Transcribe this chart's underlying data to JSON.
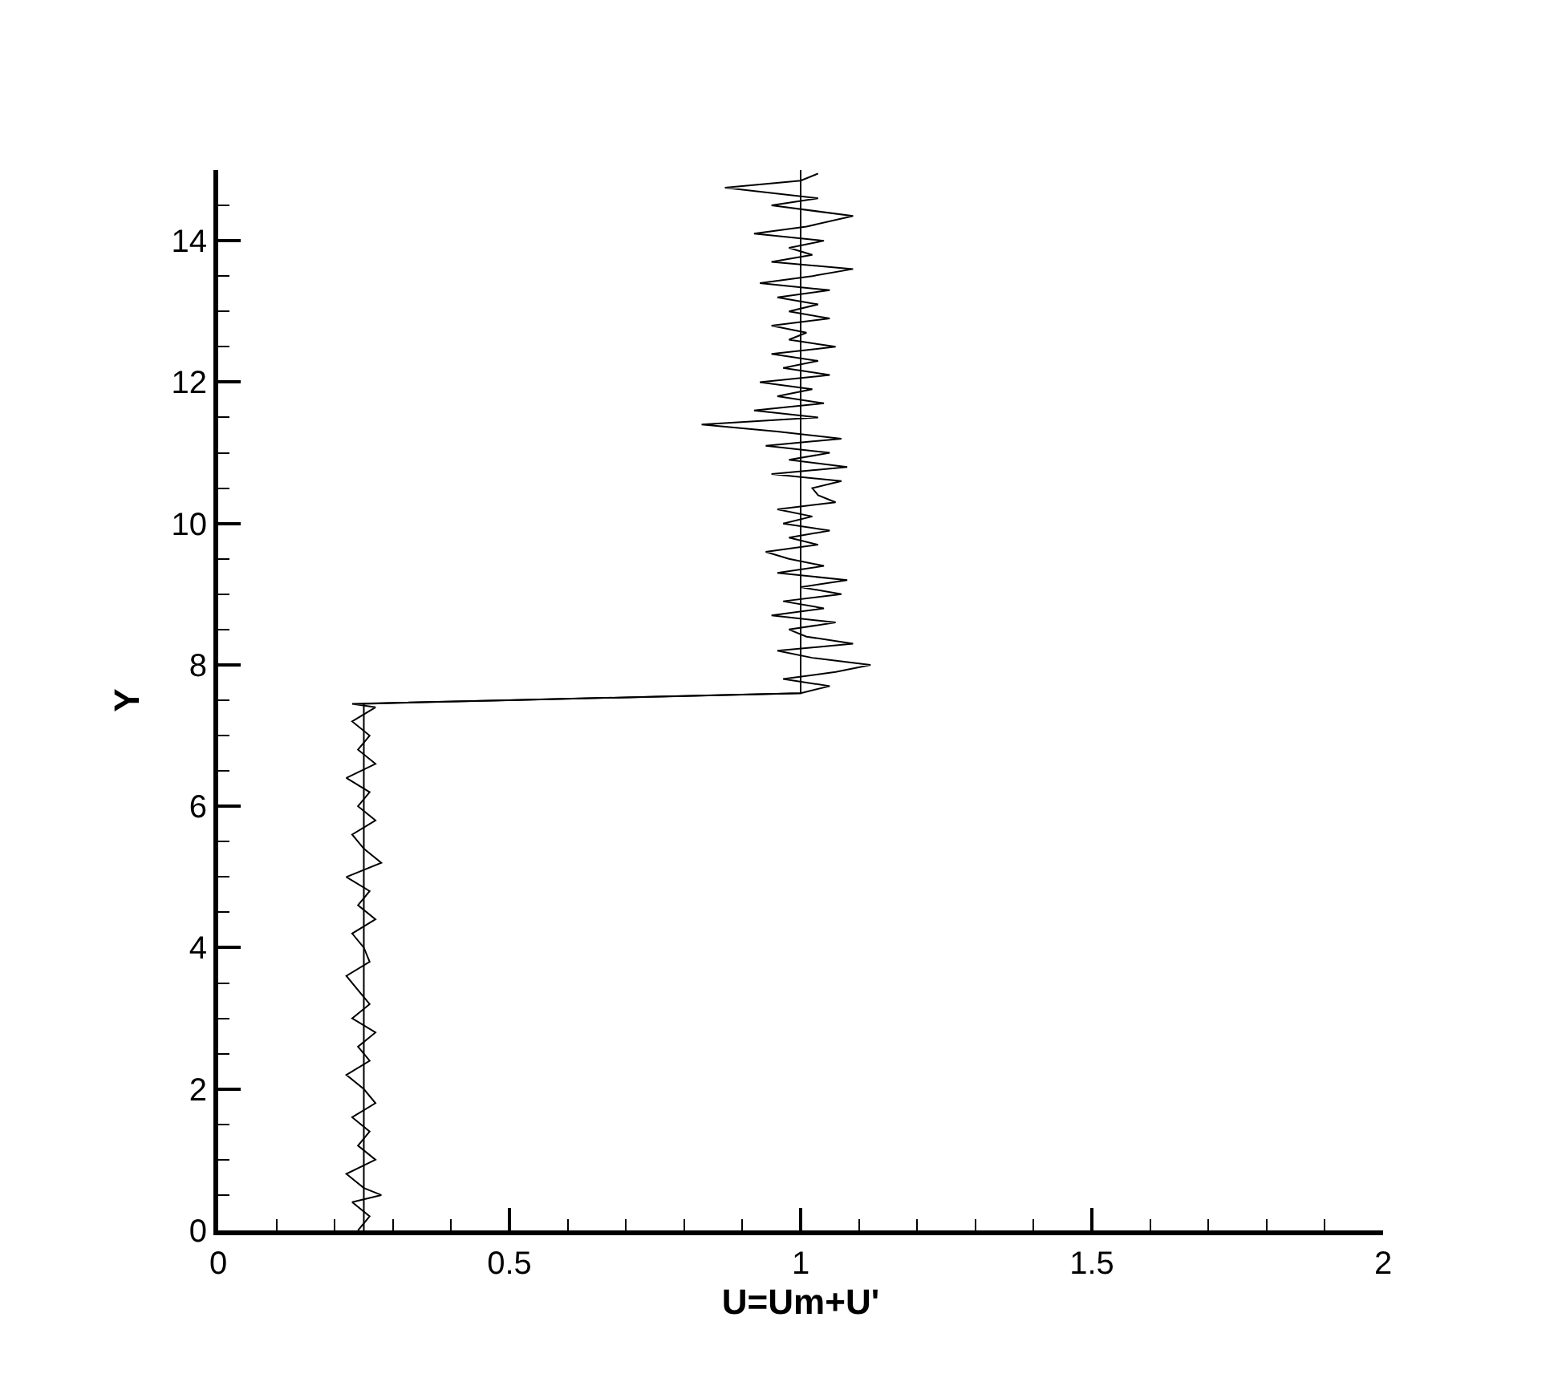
{
  "chart_data": {
    "type": "line",
    "xlabel": "U=Um+U'",
    "ylabel": "Y",
    "xlim": [
      0,
      2
    ],
    "ylim": [
      0,
      15
    ],
    "xticks": [
      0,
      {
        "value": 0.1,
        "label": null
      },
      {
        "value": 0.2,
        "label": null
      },
      {
        "value": 0.3,
        "label": null
      },
      {
        "value": 0.4,
        "label": null
      },
      0.5,
      {
        "value": 0.6,
        "label": null
      },
      {
        "value": 0.7,
        "label": null
      },
      {
        "value": 0.8,
        "label": null
      },
      {
        "value": 0.9,
        "label": null
      },
      1,
      {
        "value": 1.1,
        "label": null
      },
      {
        "value": 1.2,
        "label": null
      },
      {
        "value": 1.3,
        "label": null
      },
      {
        "value": 1.4,
        "label": null
      },
      1.5,
      {
        "value": 1.6,
        "label": null
      },
      {
        "value": 1.7,
        "label": null
      },
      {
        "value": 1.8,
        "label": null
      },
      {
        "value": 1.9,
        "label": null
      },
      2
    ],
    "yticks": [
      0,
      {
        "value": 0.5,
        "label": null
      },
      {
        "value": 1,
        "label": null
      },
      {
        "value": 1.5,
        "label": null
      },
      2,
      {
        "value": 2.5,
        "label": null
      },
      {
        "value": 3,
        "label": null
      },
      {
        "value": 3.5,
        "label": null
      },
      4,
      {
        "value": 4.5,
        "label": null
      },
      {
        "value": 5,
        "label": null
      },
      {
        "value": 5.5,
        "label": null
      },
      6,
      {
        "value": 6.5,
        "label": null
      },
      {
        "value": 7,
        "label": null
      },
      {
        "value": 7.5,
        "label": null
      },
      8,
      {
        "value": 8.5,
        "label": null
      },
      {
        "value": 9,
        "label": null
      },
      {
        "value": 9.5,
        "label": null
      },
      10,
      {
        "value": 10.5,
        "label": null
      },
      {
        "value": 11,
        "label": null
      },
      {
        "value": 11.5,
        "label": null
      },
      12,
      {
        "value": 12.5,
        "label": null
      },
      {
        "value": 13,
        "label": null
      },
      {
        "value": 13.5,
        "label": null
      },
      14,
      {
        "value": 14.5,
        "label": null
      }
    ],
    "marker": "none",
    "line_style": "solid",
    "series": [
      {
        "color": "#000000",
        "x": [
          0.24,
          0.26,
          0.23,
          0.28,
          0.25,
          0.22,
          0.27,
          0.24,
          0.26,
          0.23,
          0.27,
          0.25,
          0.22,
          0.26,
          0.24,
          0.27,
          0.23,
          0.26,
          0.24,
          0.22,
          0.26,
          0.25,
          0.23,
          0.27,
          0.24,
          0.26,
          0.22,
          0.28,
          0.25,
          0.23,
          0.27,
          0.24,
          0.26,
          0.22,
          0.27,
          0.24,
          0.26,
          0.23,
          0.27,
          0.23,
          0.5,
          0.75,
          1.0,
          1.05,
          0.97,
          1.06,
          1.12,
          1.02,
          0.96,
          1.09,
          1.01,
          0.98,
          1.06,
          0.95,
          1.04,
          0.97,
          1.07,
          1.0,
          1.08,
          0.96,
          1.04,
          0.98,
          0.94,
          1.03,
          0.98,
          1.05,
          0.97,
          1.02,
          0.96,
          1.06,
          1.03,
          1.02,
          1.07,
          0.95,
          1.08,
          0.98,
          1.05,
          0.94,
          1.07,
          0.96,
          0.83,
          1.03,
          0.92,
          1.04,
          0.96,
          1.02,
          0.93,
          1.05,
          0.97,
          1.03,
          0.95,
          1.06,
          0.98,
          1.01,
          0.95,
          1.05,
          0.98,
          1.03,
          0.96,
          1.05,
          0.93,
          1.02,
          1.09,
          0.95,
          1.02,
          0.98,
          1.04,
          0.92,
          1.01,
          1.09,
          0.95,
          1.03,
          0.87,
          1.0,
          1.03
        ],
        "values": [
          0,
          0.2,
          0.4,
          0.5,
          0.6,
          0.8,
          1.0,
          1.2,
          1.4,
          1.6,
          1.8,
          2.0,
          2.2,
          2.4,
          2.6,
          2.8,
          3.0,
          3.2,
          3.4,
          3.6,
          3.8,
          4.0,
          4.2,
          4.4,
          4.6,
          4.8,
          5.0,
          5.2,
          5.4,
          5.6,
          5.8,
          6.0,
          6.2,
          6.4,
          6.6,
          6.8,
          7.0,
          7.2,
          7.4,
          7.45,
          7.5,
          7.55,
          7.6,
          7.7,
          7.8,
          7.9,
          8.0,
          8.1,
          8.2,
          8.3,
          8.4,
          8.5,
          8.6,
          8.7,
          8.8,
          8.9,
          9.0,
          9.1,
          9.2,
          9.3,
          9.4,
          9.5,
          9.6,
          9.7,
          9.8,
          9.9,
          10.0,
          10.1,
          10.2,
          10.3,
          10.4,
          10.5,
          10.6,
          10.7,
          10.8,
          10.9,
          11.0,
          11.1,
          11.2,
          11.3,
          11.4,
          11.5,
          11.6,
          11.7,
          11.8,
          11.9,
          12.0,
          12.1,
          12.2,
          12.3,
          12.4,
          12.5,
          12.6,
          12.7,
          12.8,
          12.9,
          13.0,
          13.1,
          13.2,
          13.3,
          13.4,
          13.5,
          13.6,
          13.7,
          13.8,
          13.9,
          14.0,
          14.1,
          14.2,
          14.35,
          14.5,
          14.6,
          14.75,
          14.85,
          14.95
        ]
      },
      {
        "color": "#000000",
        "x": [
          0.25,
          0.25,
          1.0,
          1.0
        ],
        "values": [
          0,
          7.45,
          7.6,
          15
        ]
      }
    ]
  }
}
